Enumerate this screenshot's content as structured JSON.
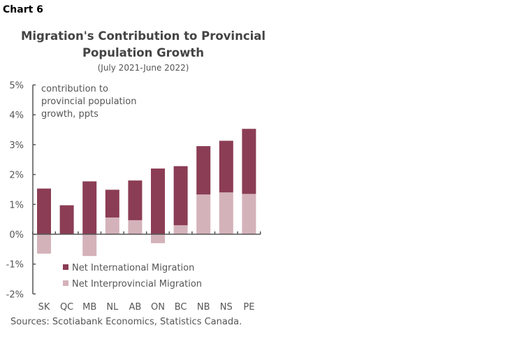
{
  "chart_label": "Chart 6",
  "chart_data": {
    "type": "bar",
    "stacked": true,
    "title": "Migration's Contribution to Provincial Population Growth",
    "subtitle": "(July 2021-June 2022)",
    "ylabel": "contribution to provincial population growth, ppts",
    "ylim": [
      -2,
      5
    ],
    "yticks": [
      "-2%",
      "-1%",
      "0%",
      "1%",
      "2%",
      "3%",
      "4%",
      "5%"
    ],
    "ytick_values": [
      -2,
      -1,
      0,
      1,
      2,
      3,
      4,
      5
    ],
    "categories": [
      "SK",
      "QC",
      "MB",
      "NL",
      "AB",
      "ON",
      "BC",
      "NB",
      "NS",
      "PE"
    ],
    "series": [
      {
        "name": "Net Interprovincial Migration",
        "color": "#D4B2BA",
        "values": [
          -0.65,
          0.0,
          -0.73,
          0.56,
          0.47,
          -0.3,
          0.3,
          1.33,
          1.4,
          1.35
        ]
      },
      {
        "name": "Net International Migration",
        "color": "#8B3D55",
        "values": [
          1.53,
          0.97,
          1.77,
          0.93,
          1.33,
          2.2,
          1.98,
          1.62,
          1.73,
          2.18
        ]
      }
    ],
    "legend_order": [
      "Net International Migration",
      "Net Interprovincial Migration"
    ],
    "legend": "bottom-inside",
    "grid": false,
    "source": "Sources: Scotiabank Economics, Statistics Canada."
  }
}
